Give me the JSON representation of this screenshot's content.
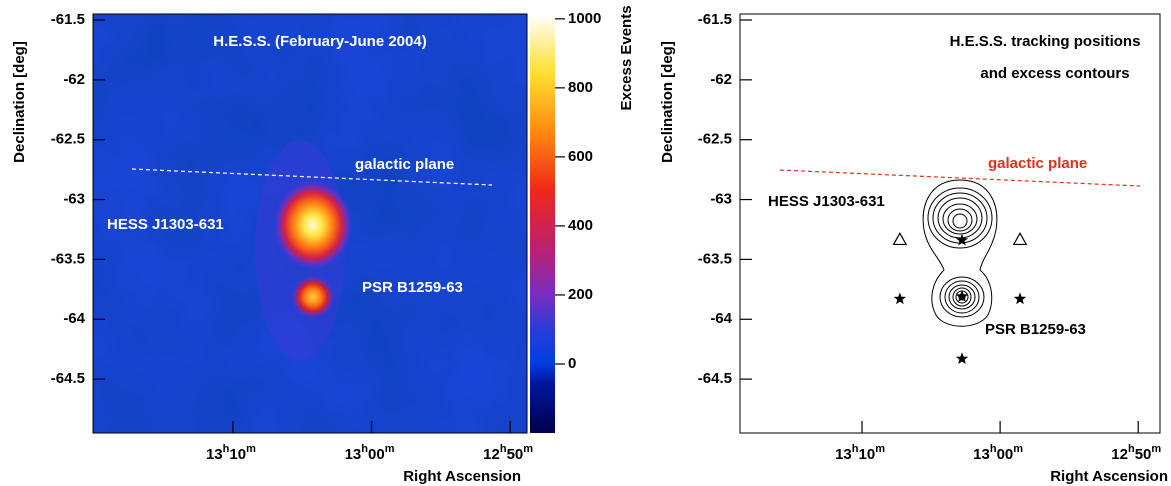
{
  "chart_data": [
    {
      "type": "heatmap",
      "title": "H.E.S.S. (February-June 2004)",
      "x_label": "Right Ascension",
      "y_label": "Declination [deg]",
      "xlim": [
        13.335,
        12.813
      ],
      "xticks": [
        {
          "value": 13.1667,
          "label": "13h10m"
        },
        {
          "value": 13.0,
          "label": "13h00m"
        },
        {
          "value": 12.8333,
          "label": "12h50m"
        }
      ],
      "ylim": [
        -64.95,
        -61.45
      ],
      "yticks": [
        -61.5,
        -62,
        -62.5,
        -63,
        -63.5,
        -64,
        -64.5
      ],
      "colorbar": {
        "label": "Excess Events",
        "lim": [
          -200,
          1014
        ],
        "ticks": [
          0,
          200,
          400,
          600,
          800,
          1000
        ]
      },
      "annotations": [
        "galactic plane",
        "HESS J1303-631",
        "PSR B1259-63"
      ]
    },
    {
      "type": "scatter",
      "title": [
        "H.E.S.S. tracking positions",
        "and excess contours"
      ],
      "x_label": "Right Ascension",
      "y_label": "Declination [deg]",
      "xlim": [
        13.314,
        12.807
      ],
      "xticks": [
        {
          "value": 13.1667,
          "label": "13h10m"
        },
        {
          "value": 13.0,
          "label": "13h00m"
        },
        {
          "value": 12.8333,
          "label": "12h50m"
        }
      ],
      "ylim": [
        -64.95,
        -61.45
      ],
      "yticks": [
        -61.5,
        -62,
        -62.5,
        -63,
        -63.5,
        -64,
        -64.5
      ],
      "series": [
        {
          "marker": "star",
          "x": [
            13.046,
            13.121,
            12.976,
            13.046,
            13.046
          ],
          "y": [
            -63.34,
            -63.83,
            -63.83,
            -63.81,
            -64.33
          ]
        },
        {
          "marker": "triangle",
          "x": [
            13.121,
            12.976
          ],
          "y": [
            -63.34,
            -63.34
          ]
        }
      ],
      "annotations": [
        "galactic plane",
        "HESS J1303-631",
        "PSR B1259-63"
      ]
    }
  ]
}
